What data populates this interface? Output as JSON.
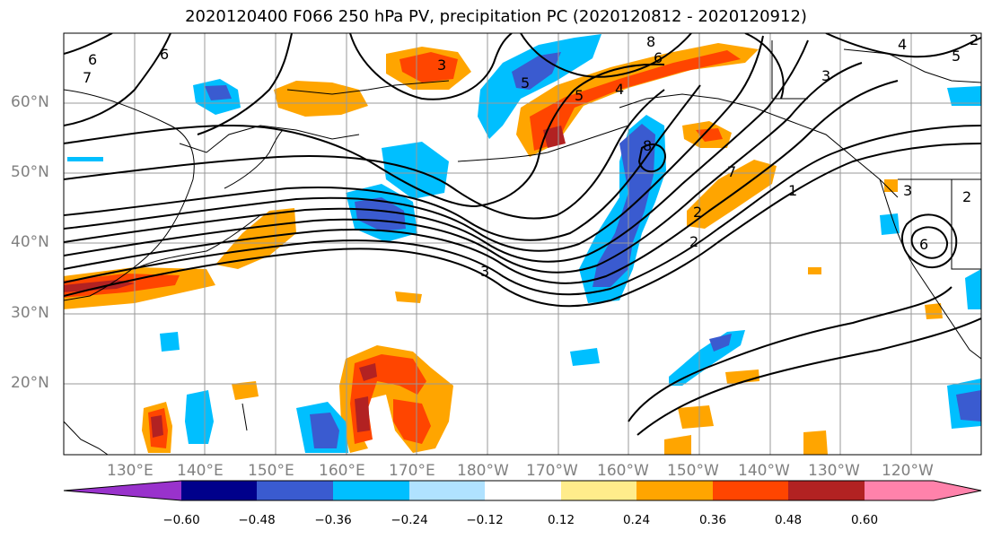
{
  "title": "2020120400 F066 250 hPa PV, precipitation PC (2020120812 - 2020120912)",
  "lat_labels": [
    "60°N",
    "50°N",
    "40°N",
    "30°N",
    "20°N"
  ],
  "lon_labels": [
    "130°E",
    "140°E",
    "150°E",
    "160°E",
    "170°E",
    "180°W",
    "170°W",
    "160°W",
    "150°W",
    "140°W",
    "130°W",
    "120°W"
  ],
  "colorbar": {
    "colors": [
      "#9932cc",
      "#00008b",
      "#3a5bd0",
      "#00bfff",
      "#b0e2ff",
      "#ffffff",
      "#ffec8b",
      "#ffa500",
      "#ff4500",
      "#b22222",
      "#ff82ab"
    ],
    "tick_labels": [
      "−0.60",
      "−0.48",
      "−0.36",
      "−0.24",
      "−0.12",
      "0.12",
      "0.24",
      "0.36",
      "0.48",
      "0.60"
    ]
  },
  "contour_labels": [
    "6",
    "6",
    "7",
    "3",
    "5",
    "8",
    "6",
    "5",
    "4",
    "3",
    "8",
    "7",
    "1",
    "2",
    "3",
    "2",
    "6",
    "4",
    "5",
    "2",
    "2",
    "3"
  ]
}
